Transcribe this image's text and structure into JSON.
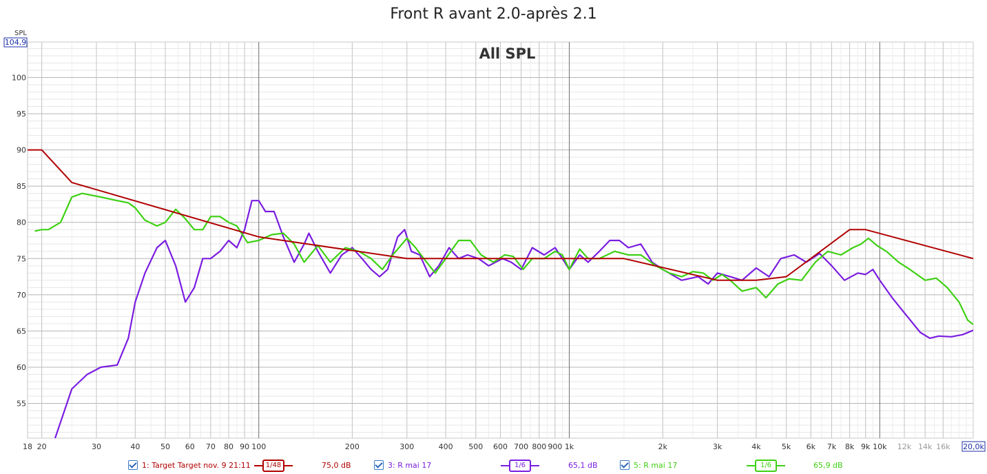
{
  "chart_data": {
    "type": "line",
    "title": "Front R avant 2.0-après 2.1",
    "subtitle": "All SPL",
    "ylabel": "SPL",
    "x_scale": "log",
    "xlim": [
      18,
      20000
    ],
    "ylim": [
      50.2,
      104.9
    ],
    "y_top_label": "104,9",
    "x_right_label": "20,0k",
    "y_ticks": [
      55,
      60,
      65,
      70,
      75,
      80,
      85,
      90,
      95,
      100
    ],
    "y_tick_labels": [
      "55",
      "60",
      "65",
      "70",
      "75",
      "80",
      "85",
      "90",
      "95",
      "100"
    ],
    "x_ticks": [
      18,
      20,
      30,
      40,
      50,
      60,
      70,
      80,
      90,
      100,
      200,
      300,
      400,
      500,
      600,
      700,
      800,
      900,
      1000,
      2000,
      3000,
      4000,
      5000,
      6000,
      7000,
      8000,
      9000,
      10000,
      12000,
      14000,
      16000
    ],
    "x_tick_labels": [
      "18",
      "20",
      "30",
      "40",
      "50",
      "60",
      "70",
      "80",
      "90",
      "100",
      "200",
      "300",
      "400",
      "500",
      "600",
      "700",
      "800",
      "900",
      "1k",
      "2k",
      "3k",
      "4k",
      "5k",
      "6k",
      "7k",
      "8k",
      "9k",
      "10k",
      "12k",
      "14k",
      "16k"
    ],
    "grid": true,
    "series": [
      {
        "name": "1: Target Target nov. 9 21:11",
        "color": "#b00000",
        "smoothing": "1/48",
        "level": "75,0 dB",
        "points": [
          [
            18,
            90.0
          ],
          [
            20,
            90.0
          ],
          [
            25,
            85.5
          ],
          [
            100,
            78.0
          ],
          [
            300,
            75.0
          ],
          [
            1500,
            75.0
          ],
          [
            3000,
            72.0
          ],
          [
            4000,
            72.0
          ],
          [
            5000,
            72.5
          ],
          [
            8000,
            79.0
          ],
          [
            9000,
            79.0
          ],
          [
            20000,
            75.0
          ]
        ]
      },
      {
        "name": "3: R mai 17",
        "color": "#7a1ce0",
        "smoothing": "1/6",
        "level": "65,1 dB",
        "points": [
          [
            22,
            50.0
          ],
          [
            25,
            57.0
          ],
          [
            28,
            59.0
          ],
          [
            31,
            60.0
          ],
          [
            35,
            60.3
          ],
          [
            38,
            64.0
          ],
          [
            40,
            69.0
          ],
          [
            43,
            73.0
          ],
          [
            47,
            76.5
          ],
          [
            50,
            77.5
          ],
          [
            54,
            74.0
          ],
          [
            58,
            69.0
          ],
          [
            62,
            71.0
          ],
          [
            66,
            75.0
          ],
          [
            70,
            75.0
          ],
          [
            75,
            76.0
          ],
          [
            80,
            77.5
          ],
          [
            85,
            76.5
          ],
          [
            90,
            79.0
          ],
          [
            95,
            83.0
          ],
          [
            100,
            83.0
          ],
          [
            105,
            81.5
          ],
          [
            112,
            81.5
          ],
          [
            120,
            78.0
          ],
          [
            130,
            74.5
          ],
          [
            140,
            77.0
          ],
          [
            145,
            78.5
          ],
          [
            155,
            76.0
          ],
          [
            170,
            73.0
          ],
          [
            185,
            75.5
          ],
          [
            200,
            76.5
          ],
          [
            215,
            75.0
          ],
          [
            230,
            73.5
          ],
          [
            245,
            72.5
          ],
          [
            260,
            73.5
          ],
          [
            280,
            78.0
          ],
          [
            295,
            79.0
          ],
          [
            310,
            76.0
          ],
          [
            330,
            75.5
          ],
          [
            355,
            72.5
          ],
          [
            380,
            74.0
          ],
          [
            410,
            76.5
          ],
          [
            440,
            75.0
          ],
          [
            470,
            75.5
          ],
          [
            510,
            75.0
          ],
          [
            550,
            74.0
          ],
          [
            610,
            75.0
          ],
          [
            650,
            74.5
          ],
          [
            700,
            73.5
          ],
          [
            760,
            76.5
          ],
          [
            830,
            75.5
          ],
          [
            900,
            76.5
          ],
          [
            950,
            75.0
          ],
          [
            1000,
            73.5
          ],
          [
            1080,
            75.5
          ],
          [
            1150,
            74.5
          ],
          [
            1250,
            76.0
          ],
          [
            1350,
            77.5
          ],
          [
            1450,
            77.5
          ],
          [
            1550,
            76.5
          ],
          [
            1700,
            77.0
          ],
          [
            1850,
            74.5
          ],
          [
            2000,
            73.5
          ],
          [
            2300,
            72.0
          ],
          [
            2600,
            72.5
          ],
          [
            2800,
            71.5
          ],
          [
            3000,
            73.0
          ],
          [
            3300,
            72.5
          ],
          [
            3600,
            72.0
          ],
          [
            4000,
            73.7
          ],
          [
            4400,
            72.5
          ],
          [
            4800,
            75.0
          ],
          [
            5300,
            75.5
          ],
          [
            5800,
            74.5
          ],
          [
            6400,
            75.7
          ],
          [
            7000,
            74.0
          ],
          [
            7700,
            72.0
          ],
          [
            8500,
            73.0
          ],
          [
            9000,
            72.8
          ],
          [
            9500,
            73.5
          ],
          [
            10000,
            72.0
          ],
          [
            11000,
            69.5
          ],
          [
            12000,
            67.5
          ],
          [
            13500,
            64.8
          ],
          [
            14500,
            64.0
          ],
          [
            15500,
            64.3
          ],
          [
            17000,
            64.2
          ],
          [
            18500,
            64.5
          ],
          [
            20000,
            65.1
          ]
        ]
      },
      {
        "name": "5: R mai 17",
        "color": "#3dd012",
        "smoothing": "1/6",
        "level": "65,9 dB",
        "points": [
          [
            19,
            78.8
          ],
          [
            20,
            79.0
          ],
          [
            21,
            79.0
          ],
          [
            23,
            80.0
          ],
          [
            25,
            83.5
          ],
          [
            27,
            84.0
          ],
          [
            31,
            83.5
          ],
          [
            35,
            83.0
          ],
          [
            38,
            82.7
          ],
          [
            40,
            82.0
          ],
          [
            43,
            80.3
          ],
          [
            47,
            79.5
          ],
          [
            50,
            80.0
          ],
          [
            54,
            81.8
          ],
          [
            58,
            80.5
          ],
          [
            62,
            79.0
          ],
          [
            66,
            79.0
          ],
          [
            70,
            80.8
          ],
          [
            75,
            80.8
          ],
          [
            80,
            80.0
          ],
          [
            85,
            79.5
          ],
          [
            92,
            77.2
          ],
          [
            100,
            77.5
          ],
          [
            110,
            78.3
          ],
          [
            120,
            78.5
          ],
          [
            130,
            77.0
          ],
          [
            140,
            74.5
          ],
          [
            155,
            76.8
          ],
          [
            170,
            74.5
          ],
          [
            190,
            76.5
          ],
          [
            210,
            76.0
          ],
          [
            230,
            75.0
          ],
          [
            250,
            73.5
          ],
          [
            270,
            75.5
          ],
          [
            300,
            77.8
          ],
          [
            320,
            76.5
          ],
          [
            340,
            75.0
          ],
          [
            370,
            73.0
          ],
          [
            400,
            75.0
          ],
          [
            440,
            77.5
          ],
          [
            480,
            77.5
          ],
          [
            520,
            75.5
          ],
          [
            570,
            74.5
          ],
          [
            620,
            75.5
          ],
          [
            660,
            75.3
          ],
          [
            710,
            73.5
          ],
          [
            760,
            75.0
          ],
          [
            830,
            75.0
          ],
          [
            900,
            76.0
          ],
          [
            950,
            75.5
          ],
          [
            1000,
            73.5
          ],
          [
            1080,
            76.3
          ],
          [
            1150,
            75.0
          ],
          [
            1250,
            75.0
          ],
          [
            1400,
            76.0
          ],
          [
            1550,
            75.5
          ],
          [
            1700,
            75.5
          ],
          [
            1900,
            74.0
          ],
          [
            2100,
            73.0
          ],
          [
            2300,
            72.5
          ],
          [
            2500,
            73.2
          ],
          [
            2700,
            73.0
          ],
          [
            2900,
            72.0
          ],
          [
            3100,
            72.8
          ],
          [
            3300,
            72.0
          ],
          [
            3600,
            70.5
          ],
          [
            4000,
            71.0
          ],
          [
            4300,
            69.6
          ],
          [
            4700,
            71.5
          ],
          [
            5100,
            72.2
          ],
          [
            5600,
            72.0
          ],
          [
            6200,
            74.5
          ],
          [
            6800,
            76.0
          ],
          [
            7500,
            75.5
          ],
          [
            8200,
            76.5
          ],
          [
            8700,
            77.0
          ],
          [
            9200,
            77.8
          ],
          [
            9800,
            76.8
          ],
          [
            10500,
            76.0
          ],
          [
            11500,
            74.5
          ],
          [
            12500,
            73.5
          ],
          [
            14000,
            72.0
          ],
          [
            15200,
            72.3
          ],
          [
            16500,
            71.0
          ],
          [
            18000,
            69.0
          ],
          [
            19200,
            66.5
          ],
          [
            20000,
            65.9
          ]
        ]
      }
    ]
  }
}
